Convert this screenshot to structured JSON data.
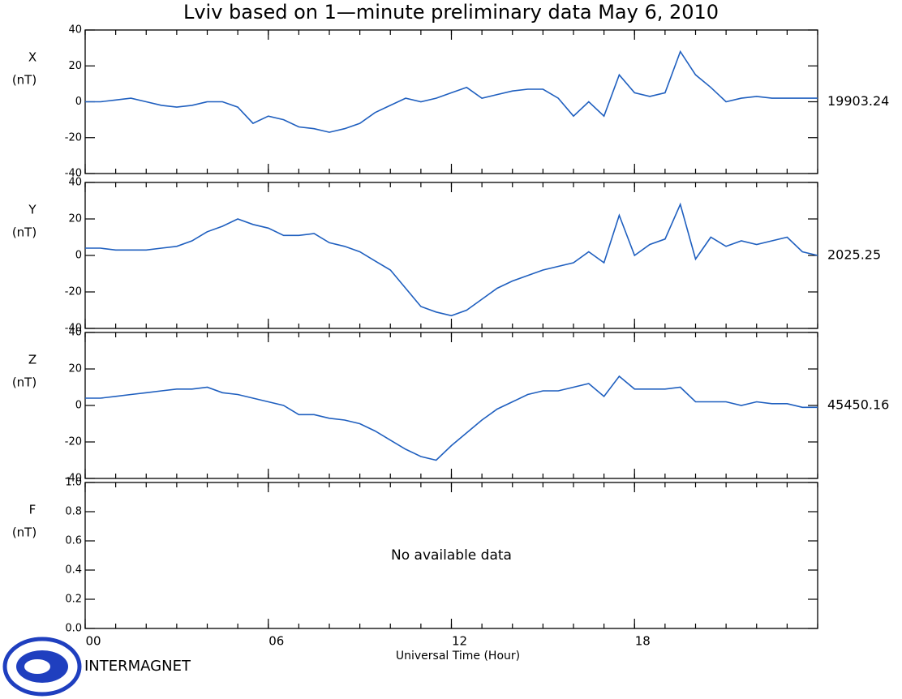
{
  "title": "Lviv based on 1—minute preliminary data May 6, 2010",
  "logo_text": "INTERMAGNET",
  "chart_data": [
    {
      "type": "line",
      "ylabel": "X",
      "unit": "(nT)",
      "baseline": 19903.24,
      "ylim": [
        -40,
        40
      ],
      "yticks": [
        -40,
        -20,
        0,
        20,
        40
      ],
      "xlim": [
        0,
        24
      ],
      "x": [
        0,
        0.5,
        1,
        1.5,
        2,
        2.5,
        3,
        3.5,
        4,
        4.5,
        5,
        5.5,
        6,
        6.5,
        7,
        7.5,
        8,
        8.5,
        9,
        9.5,
        10,
        10.5,
        11,
        11.5,
        12,
        12.5,
        13,
        13.5,
        14,
        14.5,
        15,
        15.5,
        16,
        16.5,
        17,
        17.5,
        18,
        18.5,
        19,
        19.5,
        20,
        20.5,
        21,
        21.5,
        22,
        22.5,
        23,
        23.5,
        24
      ],
      "series": [
        {
          "color": "#1f5fbf",
          "values": [
            0,
            0,
            1,
            2,
            0,
            -2,
            -3,
            -2,
            0,
            0,
            -3,
            -12,
            -8,
            -10,
            -14,
            -15,
            -17,
            -15,
            -12,
            -6,
            -2,
            2,
            0,
            2,
            5,
            8,
            2,
            4,
            6,
            7,
            7,
            2,
            -8,
            0,
            -8,
            15,
            5,
            3,
            5,
            28,
            15,
            8,
            0,
            2,
            3,
            2,
            2,
            2,
            2
          ]
        }
      ]
    },
    {
      "type": "line",
      "ylabel": "Y",
      "unit": "(nT)",
      "baseline": 2025.25,
      "ylim": [
        -40,
        40
      ],
      "yticks": [
        -40,
        -20,
        0,
        20,
        40
      ],
      "xlim": [
        0,
        24
      ],
      "x": [
        0,
        0.5,
        1,
        1.5,
        2,
        2.5,
        3,
        3.5,
        4,
        4.5,
        5,
        5.5,
        6,
        6.5,
        7,
        7.5,
        8,
        8.5,
        9,
        9.5,
        10,
        10.5,
        11,
        11.5,
        12,
        12.5,
        13,
        13.5,
        14,
        14.5,
        15,
        15.5,
        16,
        16.5,
        17,
        17.5,
        18,
        18.5,
        19,
        19.5,
        20,
        20.5,
        21,
        21.5,
        22,
        22.5,
        23,
        23.5,
        24
      ],
      "series": [
        {
          "color": "#1f5fbf",
          "values": [
            4,
            4,
            3,
            3,
            3,
            4,
            5,
            8,
            13,
            16,
            20,
            17,
            15,
            11,
            11,
            12,
            7,
            5,
            2,
            -3,
            -8,
            -18,
            -28,
            -31,
            -33,
            -30,
            -24,
            -18,
            -14,
            -11,
            -8,
            -6,
            -4,
            2,
            -4,
            22,
            0,
            6,
            9,
            28,
            -2,
            10,
            5,
            8,
            6,
            8,
            10,
            2,
            0
          ]
        }
      ]
    },
    {
      "type": "line",
      "ylabel": "Z",
      "unit": "(nT)",
      "baseline": 45450.16,
      "ylim": [
        -40,
        40
      ],
      "yticks": [
        -40,
        -20,
        0,
        20,
        40
      ],
      "xlim": [
        0,
        24
      ],
      "x": [
        0,
        0.5,
        1,
        1.5,
        2,
        2.5,
        3,
        3.5,
        4,
        4.5,
        5,
        5.5,
        6,
        6.5,
        7,
        7.5,
        8,
        8.5,
        9,
        9.5,
        10,
        10.5,
        11,
        11.5,
        12,
        12.5,
        13,
        13.5,
        14,
        14.5,
        15,
        15.5,
        16,
        16.5,
        17,
        17.5,
        18,
        18.5,
        19,
        19.5,
        20,
        20.5,
        21,
        21.5,
        22,
        22.5,
        23,
        23.5,
        24
      ],
      "series": [
        {
          "color": "#1f5fbf",
          "values": [
            4,
            4,
            5,
            6,
            7,
            8,
            9,
            9,
            10,
            7,
            6,
            4,
            2,
            0,
            -5,
            -5,
            -7,
            -8,
            -10,
            -14,
            -19,
            -24,
            -28,
            -30,
            -22,
            -15,
            -8,
            -2,
            2,
            6,
            8,
            8,
            10,
            12,
            5,
            16,
            9,
            9,
            9,
            10,
            2,
            2,
            2,
            0,
            2,
            1,
            1,
            -1,
            -1
          ]
        }
      ]
    },
    {
      "type": "line",
      "ylabel": "F",
      "unit": "(nT)",
      "annotation": "No available data",
      "ylim": [
        0,
        1
      ],
      "yticks": [
        {
          "value": 0,
          "label": "0.0"
        },
        0.2,
        0.4,
        0.6,
        0.8,
        {
          "value": 1,
          "label": "1.0"
        }
      ],
      "xlim": [
        0,
        24
      ],
      "xlabel": "Universal Time (Hour)",
      "xticks": [
        {
          "value": 0,
          "label": "00"
        },
        {
          "value": 6,
          "label": "06"
        },
        12,
        18
      ],
      "series": []
    }
  ]
}
